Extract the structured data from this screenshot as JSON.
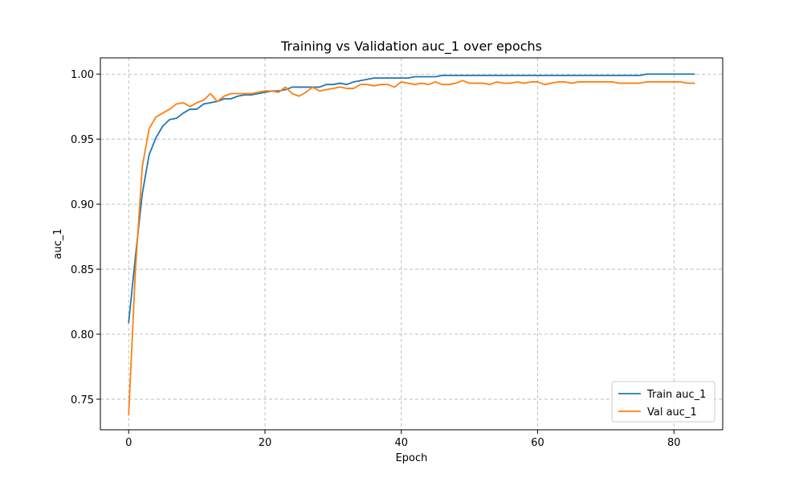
{
  "chart_data": {
    "type": "line",
    "title": "Training vs Validation auc_1 over epochs",
    "xlabel": "Epoch",
    "ylabel": "auc_1",
    "xlim": [
      -4.15,
      87.15
    ],
    "ylim": [
      0.7265,
      1.0125
    ],
    "xticks": [
      0,
      20,
      40,
      60,
      80
    ],
    "yticks": [
      0.75,
      0.8,
      0.85,
      0.9,
      0.95,
      1.0
    ],
    "ytick_labels": [
      "0.75",
      "0.80",
      "0.85",
      "0.90",
      "0.95",
      "1.00"
    ],
    "grid": true,
    "legend_position": "lower-right",
    "series": [
      {
        "name": "Train auc_1",
        "color": "#1f77b4",
        "values": [
          0.809,
          0.86,
          0.908,
          0.938,
          0.951,
          0.96,
          0.965,
          0.966,
          0.97,
          0.973,
          0.973,
          0.977,
          0.978,
          0.979,
          0.981,
          0.981,
          0.983,
          0.984,
          0.984,
          0.985,
          0.986,
          0.987,
          0.987,
          0.988,
          0.99,
          0.99,
          0.99,
          0.99,
          0.99,
          0.992,
          0.992,
          0.993,
          0.992,
          0.994,
          0.995,
          0.996,
          0.997,
          0.997,
          0.997,
          0.997,
          0.997,
          0.997,
          0.998,
          0.998,
          0.998,
          0.998,
          0.999,
          0.999,
          0.999,
          0.999,
          0.999,
          0.999,
          0.999,
          0.999,
          0.999,
          0.999,
          0.999,
          0.999,
          0.999,
          0.999,
          0.999,
          0.999,
          0.999,
          0.999,
          0.999,
          0.999,
          0.999,
          0.999,
          0.999,
          0.999,
          0.999,
          0.999,
          0.999,
          0.999,
          0.999,
          0.999,
          1.0,
          1.0,
          1.0,
          1.0,
          1.0,
          1.0,
          1.0,
          1.0
        ]
      },
      {
        "name": "Val auc_1",
        "color": "#ff7f0e",
        "values": [
          0.738,
          0.85,
          0.929,
          0.958,
          0.967,
          0.97,
          0.973,
          0.977,
          0.978,
          0.975,
          0.978,
          0.98,
          0.985,
          0.979,
          0.983,
          0.985,
          0.985,
          0.985,
          0.985,
          0.986,
          0.987,
          0.987,
          0.986,
          0.99,
          0.985,
          0.983,
          0.986,
          0.99,
          0.987,
          0.988,
          0.989,
          0.99,
          0.989,
          0.989,
          0.992,
          0.992,
          0.991,
          0.992,
          0.992,
          0.99,
          0.994,
          0.993,
          0.992,
          0.993,
          0.992,
          0.994,
          0.992,
          0.992,
          0.993,
          0.995,
          0.993,
          0.993,
          0.993,
          0.992,
          0.994,
          0.993,
          0.993,
          0.994,
          0.993,
          0.994,
          0.994,
          0.992,
          0.993,
          0.994,
          0.994,
          0.993,
          0.994,
          0.994,
          0.994,
          0.994,
          0.994,
          0.994,
          0.993,
          0.993,
          0.993,
          0.993,
          0.994,
          0.994,
          0.994,
          0.994,
          0.994,
          0.994,
          0.993,
          0.993
        ]
      }
    ]
  }
}
